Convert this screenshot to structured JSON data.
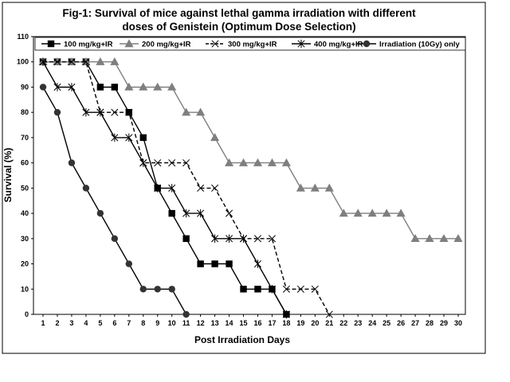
{
  "chart_data": {
    "type": "line",
    "title_line1": "Fig-1: Survival of mice against lethal gamma irradiation with different",
    "title_line2": "doses of Genistein (Optimum Dose Selection)",
    "xlabel": "Post Irradiation Days",
    "ylabel": "Survival (%)",
    "x": [
      1,
      2,
      3,
      4,
      5,
      6,
      7,
      8,
      9,
      10,
      11,
      12,
      13,
      14,
      15,
      16,
      17,
      18,
      19,
      20,
      21,
      22,
      23,
      24,
      25,
      26,
      27,
      28,
      29,
      30
    ],
    "ylim": [
      0,
      110
    ],
    "yticks": [
      0,
      10,
      20,
      30,
      40,
      50,
      60,
      70,
      80,
      90,
      100,
      110
    ],
    "grid": false,
    "legend_position": "top",
    "series": [
      {
        "name": "100 mg/kg+IR",
        "marker": "square",
        "line": "solid",
        "color": "#000000",
        "x": [
          1,
          2,
          3,
          4,
          5,
          6,
          7,
          8,
          9,
          10,
          11,
          12,
          13,
          14,
          15,
          16,
          17,
          18
        ],
        "y": [
          100,
          100,
          100,
          100,
          90,
          90,
          80,
          70,
          50,
          40,
          30,
          20,
          20,
          20,
          10,
          10,
          10,
          0
        ]
      },
      {
        "name": "200 mg/kg+IR",
        "marker": "triangle",
        "line": "solid",
        "color": "#7f7f7f",
        "x": [
          1,
          2,
          3,
          4,
          5,
          6,
          7,
          8,
          9,
          10,
          11,
          12,
          13,
          14,
          15,
          16,
          17,
          18,
          19,
          20,
          21,
          22,
          23,
          24,
          25,
          26,
          27,
          28,
          29,
          30
        ],
        "y": [
          100,
          100,
          100,
          100,
          100,
          100,
          90,
          90,
          90,
          90,
          80,
          80,
          70,
          60,
          60,
          60,
          60,
          60,
          50,
          50,
          50,
          40,
          40,
          40,
          40,
          40,
          30,
          30,
          30,
          30
        ]
      },
      {
        "name": "300 mg/kg+IR",
        "marker": "x",
        "line": "dashed",
        "color": "#000000",
        "x": [
          1,
          2,
          3,
          4,
          5,
          6,
          7,
          8,
          9,
          10,
          11,
          12,
          13,
          14,
          15,
          16,
          17,
          18,
          19,
          20,
          21
        ],
        "y": [
          100,
          100,
          100,
          100,
          80,
          80,
          80,
          60,
          60,
          60,
          60,
          50,
          50,
          40,
          30,
          30,
          30,
          10,
          10,
          10,
          0
        ]
      },
      {
        "name": "400 mg/kg+IR",
        "marker": "star",
        "line": "solid",
        "color": "#000000",
        "x": [
          1,
          2,
          3,
          4,
          5,
          6,
          7,
          8,
          9,
          10,
          11,
          12,
          13,
          14,
          15,
          16,
          17,
          18
        ],
        "y": [
          100,
          90,
          90,
          80,
          80,
          70,
          70,
          60,
          50,
          50,
          40,
          40,
          30,
          30,
          30,
          20,
          10,
          0
        ]
      },
      {
        "name": "Irradiation (10Gy) only",
        "marker": "circle",
        "line": "solid",
        "color": "#000000",
        "x": [
          1,
          2,
          3,
          4,
          5,
          6,
          7,
          8,
          9,
          10,
          11
        ],
        "y": [
          90,
          80,
          60,
          50,
          40,
          30,
          20,
          10,
          10,
          10,
          0
        ]
      }
    ]
  }
}
